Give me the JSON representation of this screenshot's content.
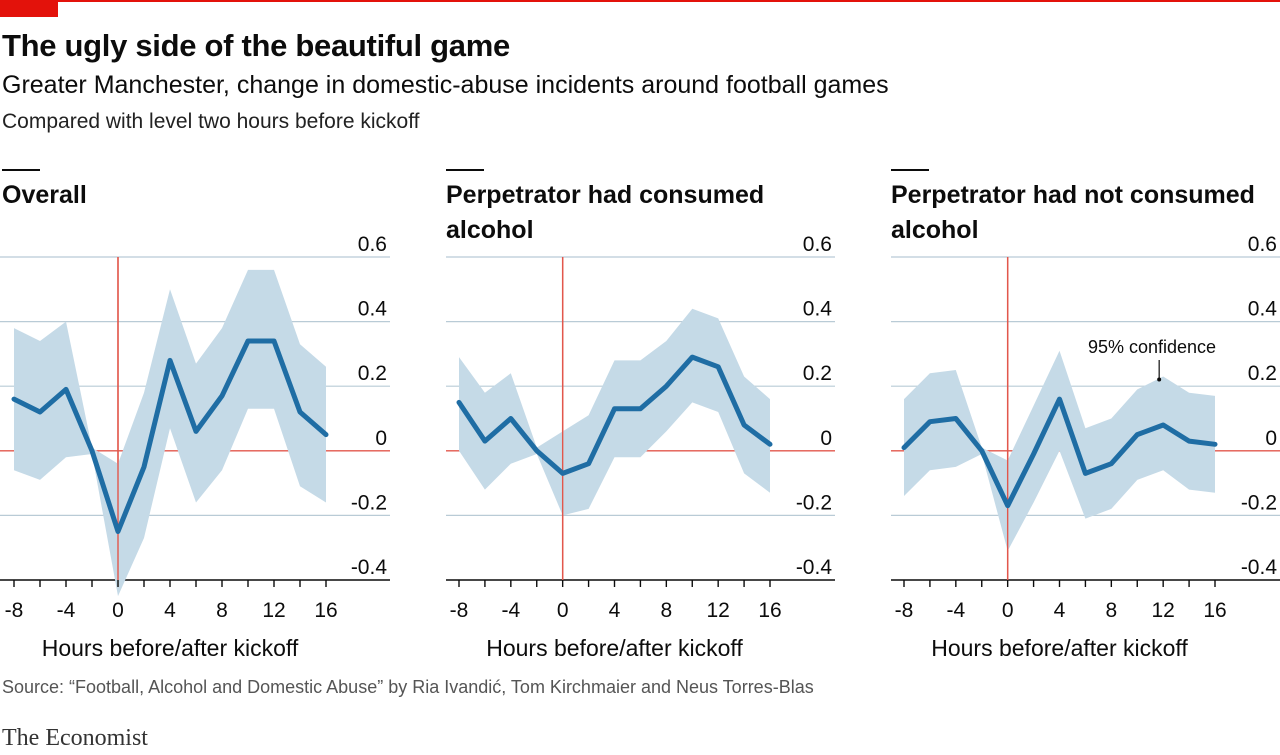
{
  "title": "The ugly side of the beautiful game",
  "subtitle": "Greater Manchester, change in domestic-abuse incidents around football games",
  "note": "Compared with level two hours before kickoff",
  "source": "Source: “Football, Alcohol and Domestic Abuse” by Ria Ivandić, Tom Kirchmaier and Neus Torres-Blas",
  "brand": "The Economist",
  "colors": {
    "accent": "#e3120b",
    "line": "#1f6da4",
    "band": "#c5dae7",
    "grid": "#b9cbd6",
    "zero": "#e2574c"
  },
  "chart_data": [
    {
      "type": "line",
      "title": "Overall",
      "xlabel": "Hours before/after kickoff",
      "ylabel": "",
      "xlim": [
        -8,
        16
      ],
      "ylim": [
        -0.4,
        0.6
      ],
      "x": [
        -8,
        -6,
        -4,
        -2,
        0,
        2,
        4,
        6,
        8,
        10,
        12,
        14,
        16
      ],
      "series": [
        {
          "name": "Change",
          "values": [
            0.16,
            0.12,
            0.19,
            0.0,
            -0.25,
            -0.05,
            0.28,
            0.06,
            0.17,
            0.34,
            0.34,
            0.12,
            0.05
          ]
        }
      ],
      "band_lower": [
        -0.06,
        -0.09,
        -0.02,
        -0.01,
        -0.45,
        -0.27,
        0.07,
        -0.16,
        -0.06,
        0.13,
        0.13,
        -0.11,
        -0.16
      ],
      "band_upper": [
        0.38,
        0.34,
        0.4,
        0.01,
        -0.04,
        0.18,
        0.5,
        0.27,
        0.38,
        0.56,
        0.56,
        0.33,
        0.26
      ],
      "x_ticks": [
        "-8",
        "-4",
        "0",
        "4",
        "8",
        "12",
        "16"
      ],
      "y_ticks": [
        "0.6",
        "0.4",
        "0.2",
        "0",
        "-0.2",
        "-0.4"
      ]
    },
    {
      "type": "line",
      "title": "Perpetrator had consumed alcohol",
      "xlabel": "Hours before/after kickoff",
      "ylabel": "",
      "xlim": [
        -8,
        16
      ],
      "ylim": [
        -0.4,
        0.6
      ],
      "x": [
        -8,
        -6,
        -4,
        -2,
        0,
        2,
        4,
        6,
        8,
        10,
        12,
        14,
        16
      ],
      "series": [
        {
          "name": "Change",
          "values": [
            0.15,
            0.03,
            0.1,
            0.0,
            -0.07,
            -0.04,
            0.13,
            0.13,
            0.2,
            0.29,
            0.26,
            0.08,
            0.02
          ]
        }
      ],
      "band_lower": [
        0.0,
        -0.12,
        -0.04,
        -0.01,
        -0.2,
        -0.18,
        -0.02,
        -0.02,
        0.06,
        0.15,
        0.12,
        -0.07,
        -0.13
      ],
      "band_upper": [
        0.29,
        0.18,
        0.24,
        0.01,
        0.06,
        0.11,
        0.28,
        0.28,
        0.34,
        0.44,
        0.41,
        0.23,
        0.16
      ],
      "x_ticks": [
        "-8",
        "-4",
        "0",
        "4",
        "8",
        "12",
        "16"
      ],
      "y_ticks": [
        "0.6",
        "0.4",
        "0.2",
        "0",
        "-0.2",
        "-0.4"
      ]
    },
    {
      "type": "line",
      "title": "Perpetrator had not consumed alcohol",
      "xlabel": "Hours before/after kickoff",
      "ylabel": "",
      "xlim": [
        -8,
        16
      ],
      "ylim": [
        -0.4,
        0.6
      ],
      "x": [
        -8,
        -6,
        -4,
        -2,
        0,
        2,
        4,
        6,
        8,
        10,
        12,
        14,
        16
      ],
      "series": [
        {
          "name": "Change",
          "values": [
            0.01,
            0.09,
            0.1,
            0.0,
            -0.17,
            -0.01,
            0.16,
            -0.07,
            -0.04,
            0.05,
            0.08,
            0.03,
            0.02
          ]
        }
      ],
      "band_lower": [
        -0.14,
        -0.06,
        -0.05,
        -0.01,
        -0.31,
        -0.16,
        0.0,
        -0.21,
        -0.18,
        -0.09,
        -0.06,
        -0.12,
        -0.13
      ],
      "band_upper": [
        0.16,
        0.24,
        0.25,
        0.01,
        -0.03,
        0.14,
        0.31,
        0.07,
        0.1,
        0.19,
        0.23,
        0.18,
        0.17
      ],
      "annotation": "95% confidence",
      "x_ticks": [
        "-8",
        "-4",
        "0",
        "4",
        "8",
        "12",
        "16"
      ],
      "y_ticks": [
        "0.6",
        "0.4",
        "0.2",
        "0",
        "-0.2",
        "-0.4"
      ]
    }
  ]
}
